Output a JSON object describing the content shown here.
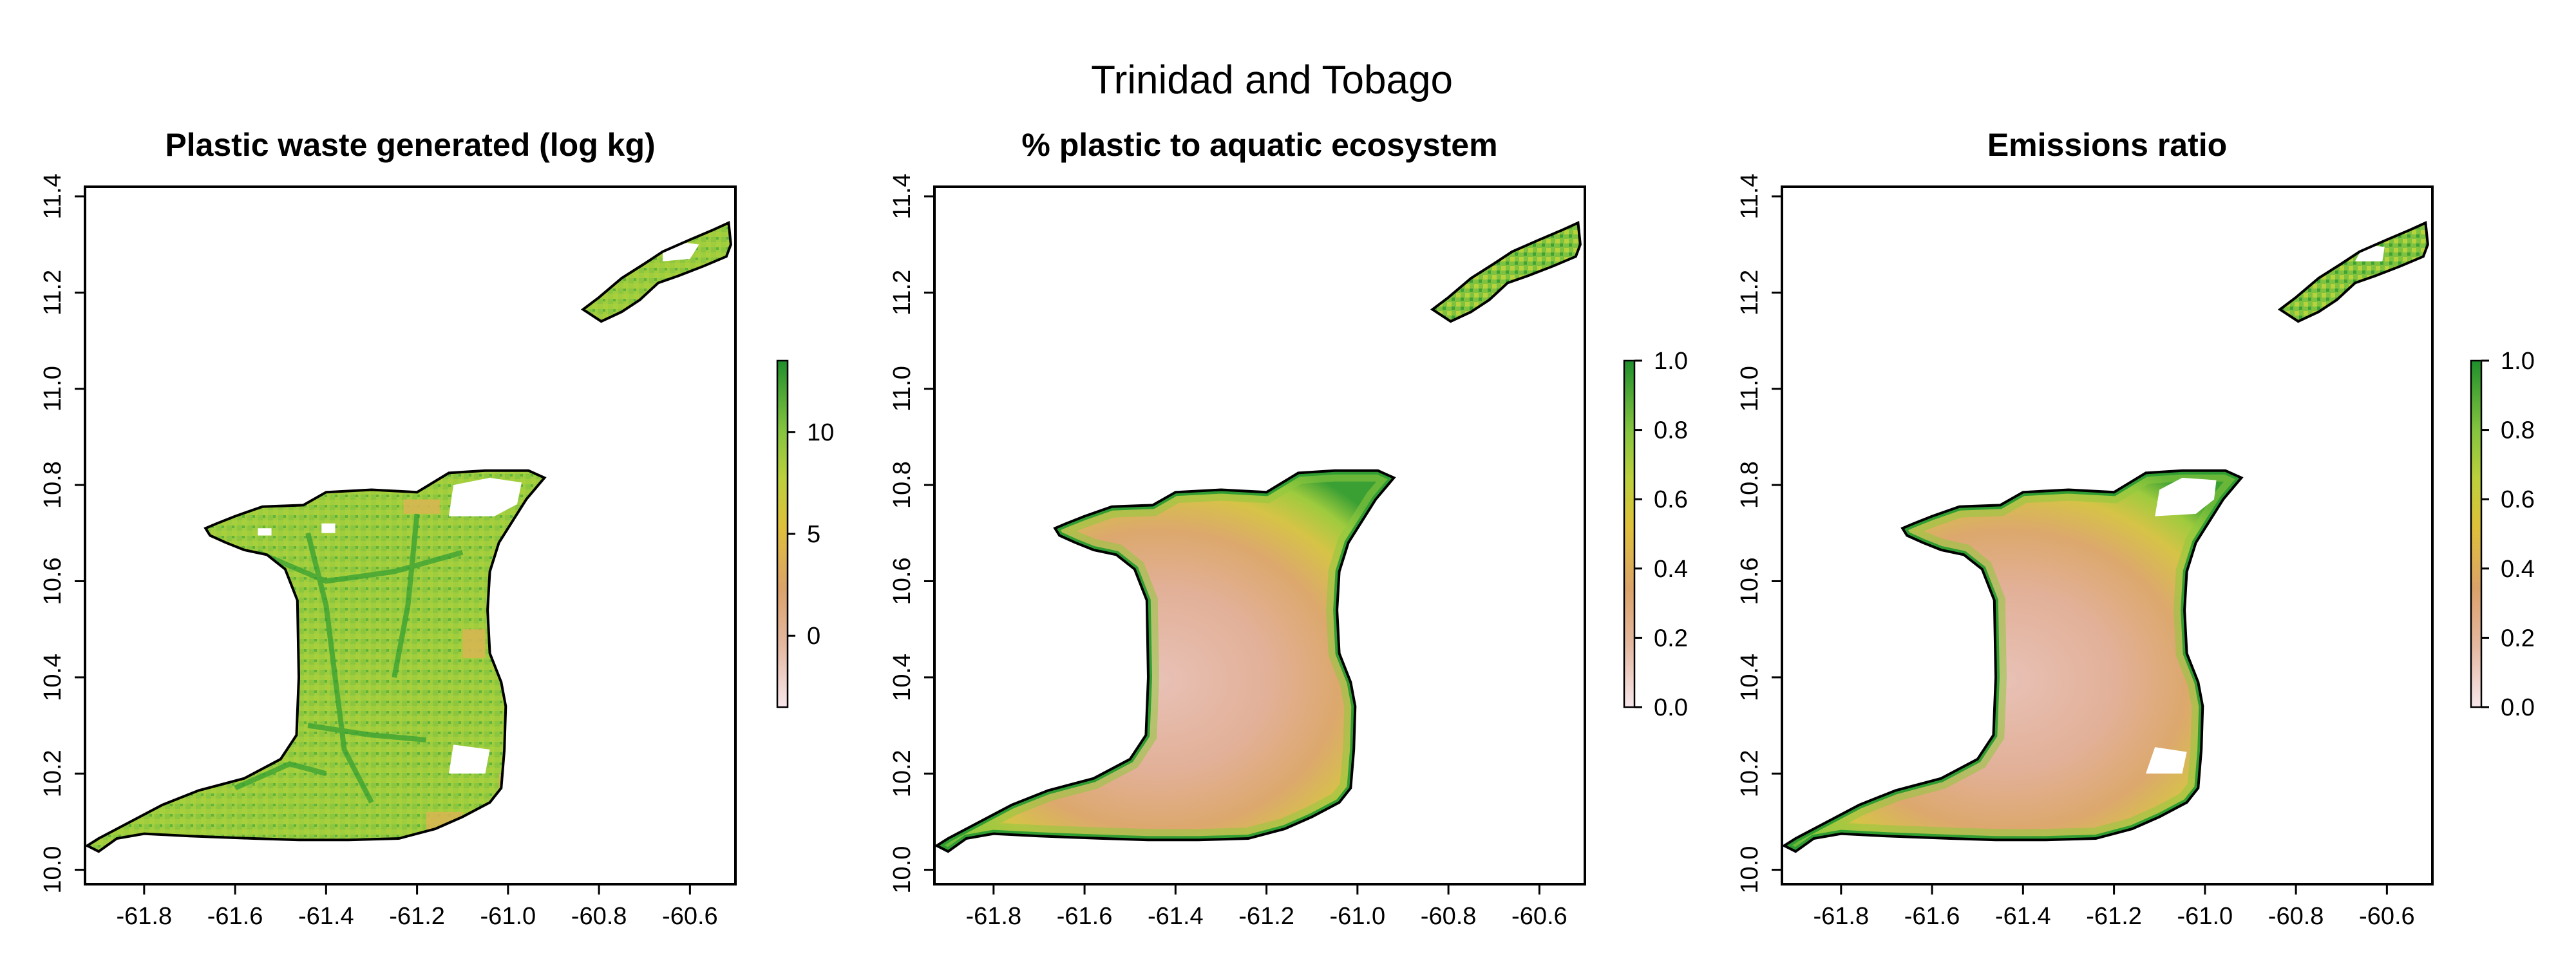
{
  "figure": {
    "title": "Trinidad and Tobago"
  },
  "colors": {
    "ramp": [
      "#f2dfe4",
      "#e3b39b",
      "#dca570",
      "#e0bf3a",
      "#c6d23a",
      "#8cc63f",
      "#2f9d32"
    ],
    "land_mid": "#93c940",
    "coast_green": "#3ea235",
    "outline": "#000000"
  },
  "chart_data": [
    {
      "type": "map",
      "title": "Plastic waste generated (log kg)",
      "xlim": [
        -61.93,
        -60.5
      ],
      "ylim": [
        9.97,
        11.42
      ],
      "x_ticks": [
        "-61.8",
        "-61.6",
        "-61.4",
        "-61.2",
        "-61.0",
        "-60.8",
        "-60.6"
      ],
      "y_ticks": [
        "10.0",
        "10.2",
        "10.4",
        "10.6",
        "10.8",
        "11.0",
        "11.2",
        "11.4"
      ],
      "legend": {
        "min": -3.5,
        "max": 13.5,
        "ticks": [
          "10",
          "5",
          "0"
        ],
        "tick_values": [
          10,
          5,
          0
        ]
      }
    },
    {
      "type": "map",
      "title": "% plastic to aquatic ecosystem",
      "xlim": [
        -61.93,
        -60.5
      ],
      "ylim": [
        9.97,
        11.42
      ],
      "x_ticks": [
        "-61.8",
        "-61.6",
        "-61.4",
        "-61.2",
        "-61.0",
        "-60.8",
        "-60.6"
      ],
      "y_ticks": [
        "10.0",
        "10.2",
        "10.4",
        "10.6",
        "10.8",
        "11.0",
        "11.2",
        "11.4"
      ],
      "legend": {
        "min": 0,
        "max": 1,
        "ticks": [
          "1.0",
          "0.8",
          "0.6",
          "0.4",
          "0.2",
          "0.0"
        ],
        "tick_values": [
          1.0,
          0.8,
          0.6,
          0.4,
          0.2,
          0.0
        ]
      }
    },
    {
      "type": "map",
      "title": "Emissions ratio",
      "xlim": [
        -61.93,
        -60.5
      ],
      "ylim": [
        9.97,
        11.42
      ],
      "x_ticks": [
        "-61.8",
        "-61.6",
        "-61.4",
        "-61.2",
        "-61.0",
        "-60.8",
        "-60.6"
      ],
      "y_ticks": [
        "10.0",
        "10.2",
        "10.4",
        "10.6",
        "10.8",
        "11.0",
        "11.2",
        "11.4"
      ],
      "legend": {
        "min": 0,
        "max": 1,
        "ticks": [
          "1.0",
          "0.8",
          "0.6",
          "0.4",
          "0.2",
          "0.0"
        ],
        "tick_values": [
          1.0,
          0.8,
          0.6,
          0.4,
          0.2,
          0.0
        ]
      }
    }
  ]
}
